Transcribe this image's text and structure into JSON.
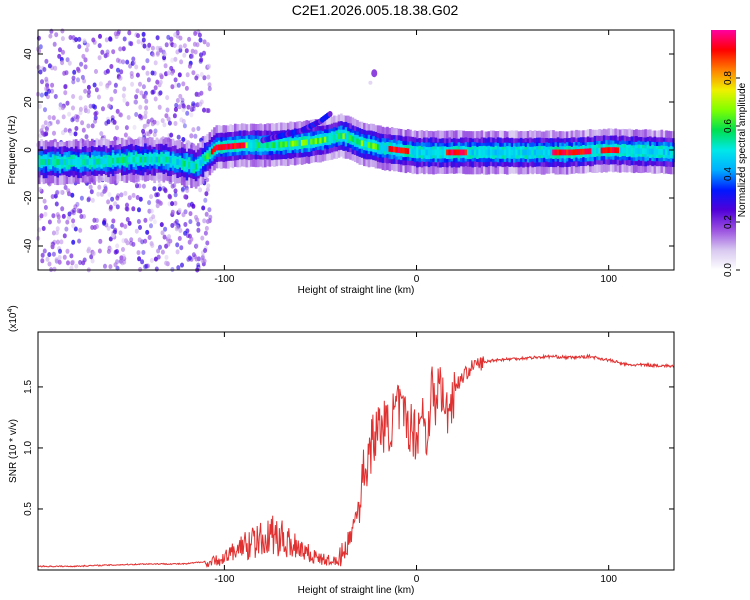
{
  "title": "C2E1.2026.005.18.38.G02",
  "colors": {
    "snr_line": "#e03030",
    "background": "#ffffff"
  },
  "spectrogram": {
    "xlabel": "Height of straight line (km)",
    "ylabel": "Frequency (Hz)",
    "xlim": [
      -197,
      134
    ],
    "ylim": [
      -50,
      50
    ],
    "xticks": [
      -100,
      0,
      100
    ],
    "yticks": [
      -40,
      -20,
      0,
      20,
      40
    ]
  },
  "colorbar": {
    "label": "Normalized spectral amplitude",
    "ticks": [
      "0.0",
      "0.2",
      "0.4",
      "0.6",
      "0.8"
    ],
    "colormap": [
      "#ffffff",
      "#d8c8f0",
      "#9a50e0",
      "#5000d8",
      "#0018ff",
      "#00b0ff",
      "#00e8e8",
      "#00e050",
      "#80ff00",
      "#f0f000",
      "#ff8000",
      "#ff0000",
      "#ff00a0"
    ]
  },
  "chart_data": [
    {
      "type": "heatmap",
      "title": "C2E1.2026.005.18.38.G02",
      "xlabel": "Height of straight line (km)",
      "ylabel": "Frequency (Hz)",
      "xlim": [
        -197,
        134
      ],
      "ylim": [
        -50,
        50
      ],
      "colorbar_label": "Normalized spectral amplitude",
      "colorbar_range": [
        0.0,
        1.0
      ],
      "ridge": {
        "x": [
          -197,
          -170,
          -150,
          -130,
          -115,
          -105,
          -90,
          -75,
          -60,
          -50,
          -40,
          -35,
          -30,
          -20,
          -10,
          0,
          20,
          50,
          80,
          100,
          134
        ],
        "frequency": [
          -5,
          -5,
          -4,
          -4,
          -7,
          1,
          2,
          2,
          3,
          4,
          6,
          5,
          3,
          1,
          0,
          -1,
          -1,
          -1,
          -1,
          0,
          -1
        ]
      },
      "secondary_ridge": {
        "x": [
          -80,
          -70,
          -60,
          -50,
          -45
        ],
        "frequency": [
          4,
          6,
          8,
          12,
          15
        ]
      },
      "isolated_feature": {
        "x": -22,
        "frequency": 32
      },
      "peak_amplitude_x": [
        -103,
        -95,
        -10,
        20,
        75,
        85,
        100
      ]
    },
    {
      "type": "line",
      "xlabel": "Height of straight line (km)",
      "ylabel": "SNR (10 * v/v)",
      "y_multiplier": "(x10^4)",
      "xlim": [
        -197,
        134
      ],
      "ylim": [
        0.0,
        1.95
      ],
      "xticks": [
        -100,
        0,
        100
      ],
      "yticks": [
        0.5,
        1.0,
        1.5
      ],
      "series": [
        {
          "x": [
            -197,
            -180,
            -160,
            -140,
            -120,
            -110,
            -100,
            -95,
            -90,
            -85,
            -80,
            -75,
            -70,
            -65,
            -60,
            -55,
            -50,
            -45,
            -40,
            -35,
            -30,
            -28,
            -25,
            -22,
            -20,
            -18,
            -15,
            -12,
            -10,
            -8,
            -5,
            -2,
            0,
            3,
            5,
            8,
            10,
            12,
            15,
            18,
            20,
            25,
            30,
            40,
            50,
            60,
            70,
            80,
            90,
            100,
            110,
            120,
            134
          ],
          "y": [
            0.03,
            0.03,
            0.04,
            0.05,
            0.05,
            0.07,
            0.13,
            0.2,
            0.27,
            0.3,
            0.33,
            0.38,
            0.34,
            0.3,
            0.25,
            0.17,
            0.12,
            0.1,
            0.1,
            0.24,
            0.55,
            0.75,
            0.95,
            1.1,
            1.15,
            1.2,
            1.15,
            1.25,
            1.35,
            1.28,
            1.22,
            1.15,
            1.1,
            1.35,
            1.05,
            1.5,
            1.3,
            1.6,
            1.25,
            1.4,
            1.5,
            1.6,
            1.68,
            1.72,
            1.73,
            1.74,
            1.75,
            1.74,
            1.75,
            1.72,
            1.68,
            1.68,
            1.67
          ]
        }
      ]
    }
  ],
  "snr": {
    "xlabel": "Height of straight line (km)",
    "ylabel": "SNR (10 * v/v)",
    "multiplier_base": "(x10",
    "multiplier_exp": "4",
    "multiplier_close": ")",
    "xticks": [
      -100,
      0,
      100
    ],
    "yticks": [
      "0.5",
      "1.0",
      "1.5"
    ]
  }
}
